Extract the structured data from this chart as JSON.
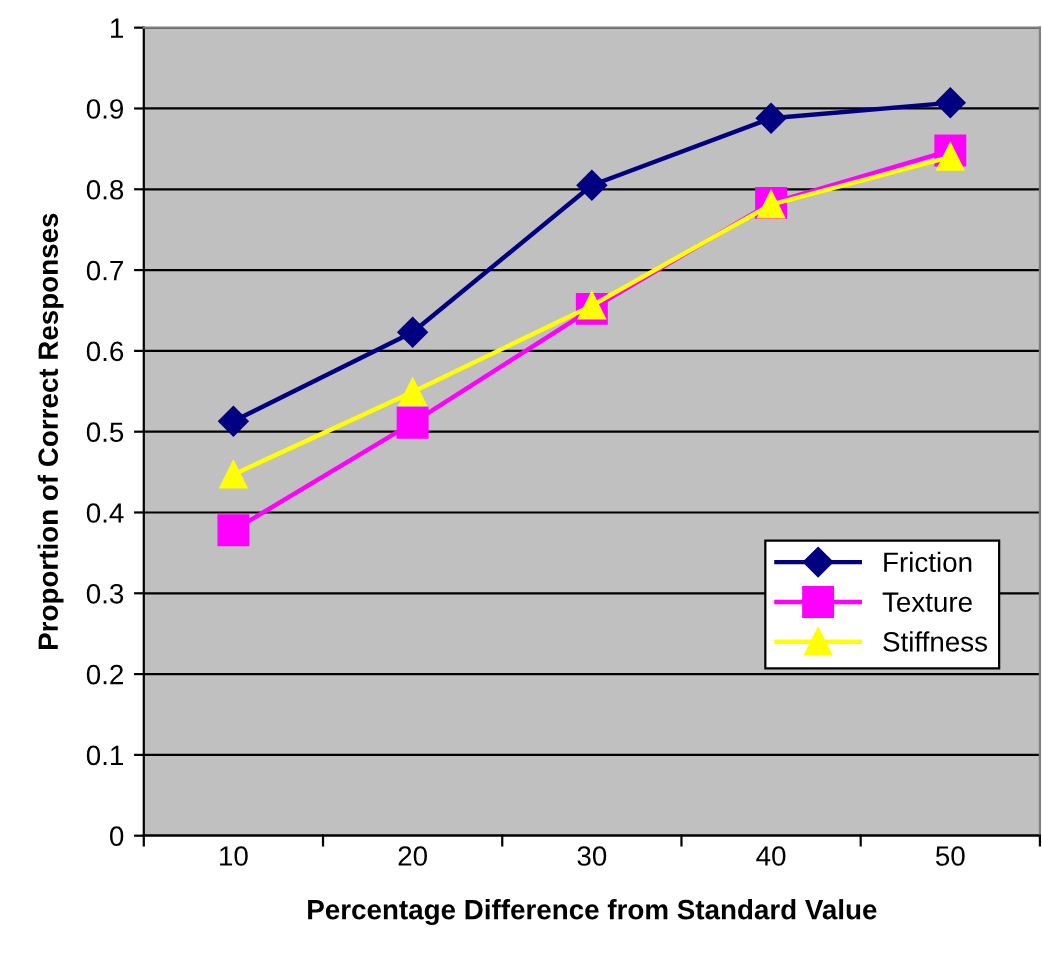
{
  "chart_data": {
    "type": "line",
    "xlabel": "Percentage Difference from Standard Value",
    "ylabel": "Proportion of Correct Responses",
    "categories": [
      "10",
      "20",
      "30",
      "40",
      "50"
    ],
    "series": [
      {
        "name": "Friction",
        "color": "#000080",
        "marker": "diamond",
        "values": [
          0.513,
          0.623,
          0.805,
          0.888,
          0.907
        ]
      },
      {
        "name": "Texture",
        "color": "#ff00ff",
        "marker": "square",
        "values": [
          0.378,
          0.511,
          0.652,
          0.783,
          0.848
        ]
      },
      {
        "name": "Stiffness",
        "color": "#ffff00",
        "marker": "triangle",
        "values": [
          0.447,
          0.549,
          0.656,
          0.781,
          0.84
        ]
      }
    ],
    "ylim": [
      0,
      1
    ],
    "yticks": [
      0,
      0.1,
      0.2,
      0.3,
      0.4,
      0.5,
      0.6,
      0.7,
      0.8,
      0.9,
      1
    ],
    "grid": "y",
    "legend": "bottom right",
    "line_style": "solid"
  }
}
